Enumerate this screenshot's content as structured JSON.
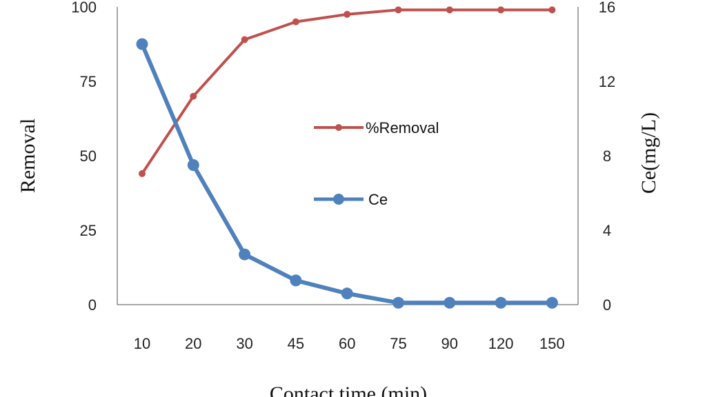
{
  "chart_data": {
    "type": "line",
    "categories": [
      "10",
      "20",
      "30",
      "45",
      "60",
      "75",
      "90",
      "120",
      "150"
    ],
    "series": [
      {
        "name": "%Removal",
        "axis": "left",
        "color": "#c0504d",
        "values": [
          44,
          70,
          89,
          95,
          97.5,
          99,
          99,
          99,
          99
        ]
      },
      {
        "name": "Ce",
        "axis": "right",
        "color": "#4f81bd",
        "values": [
          14.0,
          7.5,
          2.7,
          1.3,
          0.6,
          0.1,
          0.1,
          0.1,
          0.1
        ]
      }
    ],
    "xlabel": "Contact time (min)",
    "ylabel": "Removal",
    "ylabel_right": "Ce(mg/L)",
    "ylim": [
      0,
      100
    ],
    "ylim_right": [
      0,
      16
    ],
    "yticks": [
      "0",
      "25",
      "50",
      "75",
      "100"
    ],
    "yticks_right": [
      "0",
      "4",
      "8",
      "12",
      "16"
    ],
    "grid": false,
    "legend_position": "center"
  }
}
